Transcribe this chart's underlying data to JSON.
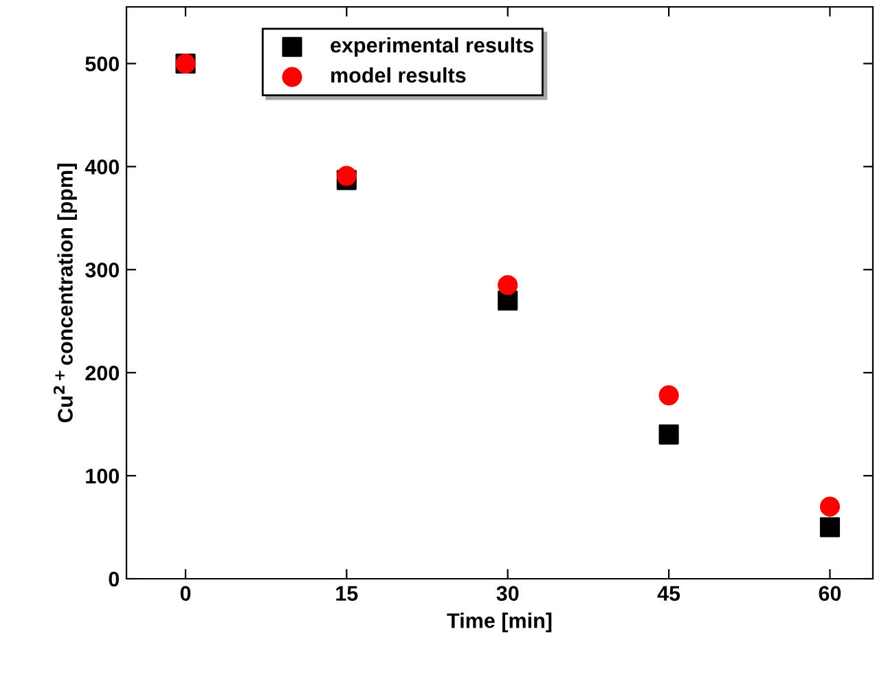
{
  "chart_data": {
    "type": "scatter",
    "xlabel": "Time [min]",
    "ylabel": "Cu$^{2+}$concentration [ppm]",
    "x": [
      0,
      15,
      30,
      45,
      60
    ],
    "series": [
      {
        "name": "experimental results",
        "color": "#000000",
        "marker": "square",
        "values": [
          500,
          387,
          270,
          140,
          50
        ]
      },
      {
        "name": "model results",
        "color": "#ff0000",
        "marker": "circle",
        "values": [
          500,
          391,
          285,
          178,
          70
        ]
      }
    ],
    "xlim": [
      -5.5,
      64
    ],
    "xticks": [
      0,
      15,
      30,
      45,
      60
    ],
    "ylim": [
      0,
      555
    ],
    "yticks": [
      0,
      100,
      200,
      300,
      400,
      500
    ],
    "grid": false,
    "legend": "top"
  }
}
